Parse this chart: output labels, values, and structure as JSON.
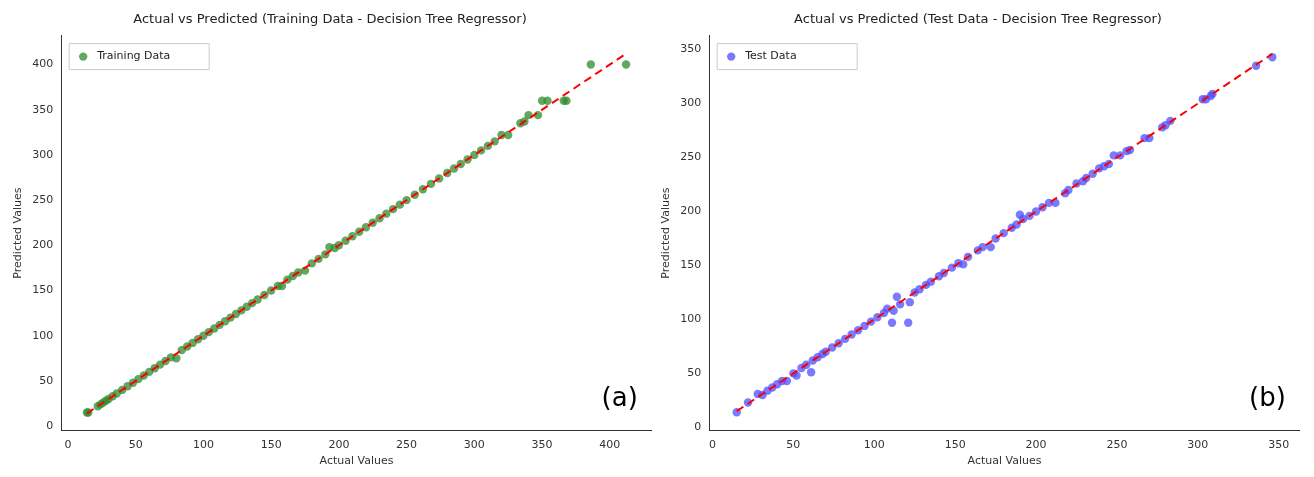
{
  "chart_data": [
    {
      "type": "scatter",
      "title": "Actual vs Predicted (Training Data - Decision Tree Regressor)",
      "xlabel": "Actual Values",
      "ylabel": "Predicted Values",
      "annotations": [
        "(a)"
      ],
      "xlim": [
        -5,
        431
      ],
      "ylim": [
        -5,
        432
      ],
      "xticks": [
        0,
        50,
        100,
        150,
        200,
        250,
        300,
        350,
        400
      ],
      "yticks": [
        0,
        50,
        100,
        150,
        200,
        250,
        300,
        350,
        400
      ],
      "grid": false,
      "legend": "top left",
      "marker": "circle",
      "series": [
        {
          "name": "Training Data",
          "color": "#2e8b2e",
          "x": [
            14,
            15,
            22,
            24,
            26,
            28,
            30,
            33,
            36,
            40,
            44,
            48,
            52,
            56,
            60,
            64,
            68,
            72,
            76,
            80,
            84,
            88,
            92,
            96,
            100,
            104,
            108,
            112,
            116,
            120,
            124,
            128,
            132,
            136,
            140,
            145,
            150,
            155,
            158,
            162,
            166,
            170,
            175,
            180,
            185,
            190,
            193,
            197,
            200,
            205,
            210,
            215,
            220,
            225,
            230,
            235,
            240,
            245,
            250,
            256,
            262,
            268,
            274,
            280,
            285,
            290,
            295,
            300,
            305,
            310,
            315,
            320,
            325,
            334,
            337,
            340,
            347,
            350,
            354,
            366,
            368,
            386,
            412
          ],
          "values": [
            15,
            15,
            22,
            24,
            26,
            28,
            30,
            33,
            36,
            40,
            44,
            48,
            52,
            56,
            60,
            64,
            68,
            72,
            76,
            75,
            84,
            88,
            92,
            96,
            100,
            104,
            108,
            112,
            116,
            120,
            124,
            128,
            132,
            136,
            140,
            145,
            150,
            155,
            155,
            162,
            166,
            170,
            172,
            180,
            185,
            190,
            198,
            197,
            200,
            205,
            210,
            215,
            220,
            225,
            230,
            235,
            240,
            245,
            250,
            256,
            262,
            268,
            274,
            280,
            285,
            290,
            295,
            300,
            305,
            310,
            315,
            322,
            322,
            335,
            337,
            344,
            344,
            360,
            360,
            360,
            360,
            400,
            400
          ]
        },
        {
          "type": "line",
          "color": "#ff0000",
          "line_style": "dashed",
          "marker": "none",
          "x": [
            14,
            412
          ],
          "values": [
            14,
            412
          ]
        }
      ]
    },
    {
      "type": "scatter",
      "title": "Actual vs Predicted (Test Data - Decision Tree Regressor)",
      "xlabel": "Actual Values",
      "ylabel": "Predicted Values",
      "annotations": [
        "(b)"
      ],
      "xlim": [
        -2,
        363
      ],
      "ylim": [
        -3,
        363
      ],
      "xticks": [
        0,
        50,
        100,
        150,
        200,
        250,
        300,
        350
      ],
      "yticks": [
        0,
        50,
        100,
        150,
        200,
        250,
        300,
        350
      ],
      "grid": false,
      "legend": "top left",
      "marker": "circle",
      "series": [
        {
          "name": "Test Data",
          "color": "#4d4dff",
          "x": [
            15,
            22,
            28,
            31,
            34,
            37,
            40,
            43,
            46,
            50,
            52,
            55,
            58,
            61,
            62,
            65,
            68,
            70,
            74,
            78,
            82,
            86,
            90,
            94,
            98,
            102,
            106,
            108,
            111,
            112,
            114,
            116,
            121,
            122,
            125,
            128,
            132,
            135,
            140,
            143,
            148,
            152,
            155,
            158,
            164,
            167,
            172,
            175,
            180,
            185,
            188,
            190,
            192,
            196,
            200,
            204,
            208,
            212,
            218,
            220,
            225,
            229,
            231,
            235,
            239,
            242,
            245,
            248,
            252,
            256,
            258,
            267,
            270,
            278,
            280,
            283,
            303,
            305,
            308,
            309,
            336,
            346
          ],
          "values": [
            14,
            23,
            31,
            30,
            34,
            37,
            40,
            43,
            43,
            50,
            48,
            55,
            58,
            51,
            62,
            65,
            68,
            70,
            74,
            78,
            82,
            86,
            90,
            94,
            98,
            102,
            106,
            110,
            97,
            108,
            121,
            114,
            97,
            116,
            125,
            128,
            132,
            135,
            140,
            143,
            148,
            152,
            151,
            158,
            164,
            167,
            167,
            175,
            180,
            185,
            188,
            197,
            193,
            196,
            200,
            204,
            208,
            208,
            217,
            220,
            226,
            228,
            231,
            235,
            240,
            242,
            244,
            252,
            252,
            256,
            257,
            268,
            268,
            278,
            280,
            284,
            304,
            304,
            307,
            309,
            335,
            343
          ]
        },
        {
          "type": "line",
          "color": "#ff0000",
          "line_style": "dashed",
          "marker": "none",
          "x": [
            15,
            346
          ],
          "values": [
            15,
            346
          ]
        }
      ]
    }
  ]
}
